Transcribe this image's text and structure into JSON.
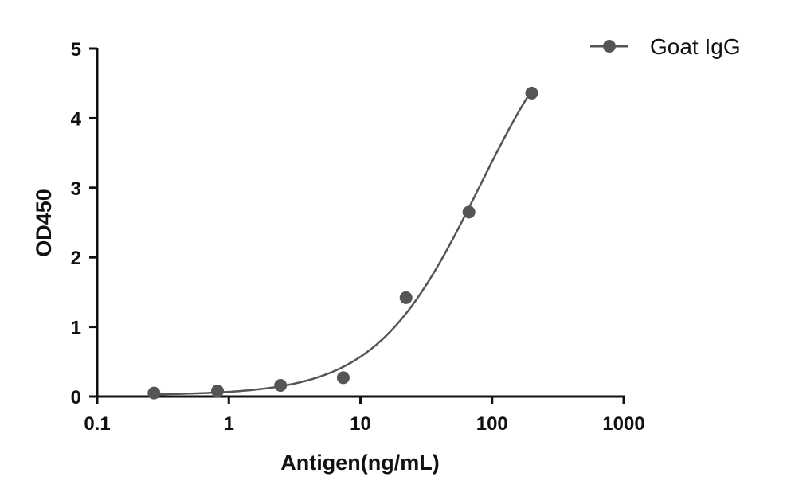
{
  "chart_data": {
    "type": "scatter",
    "title": "",
    "xlabel": "Antigen(ng/mL)",
    "ylabel": "OD450",
    "xscale": "log",
    "xlim": [
      0.1,
      1000
    ],
    "ylim": [
      0,
      5
    ],
    "xticks": [
      "0.1",
      "1",
      "10",
      "100",
      "1000"
    ],
    "yticks": [
      "0",
      "1",
      "2",
      "3",
      "4",
      "5"
    ],
    "grid": false,
    "legend_position": "top-right",
    "fit_curve": "sigmoidal (4PL) fit through points",
    "series": [
      {
        "name": "Goat IgG",
        "color": "#555555",
        "x": [
          0.27,
          0.82,
          2.47,
          7.4,
          22.2,
          66.7,
          200
        ],
        "y": [
          0.05,
          0.08,
          0.16,
          0.27,
          1.42,
          2.65,
          4.36
        ]
      }
    ]
  }
}
